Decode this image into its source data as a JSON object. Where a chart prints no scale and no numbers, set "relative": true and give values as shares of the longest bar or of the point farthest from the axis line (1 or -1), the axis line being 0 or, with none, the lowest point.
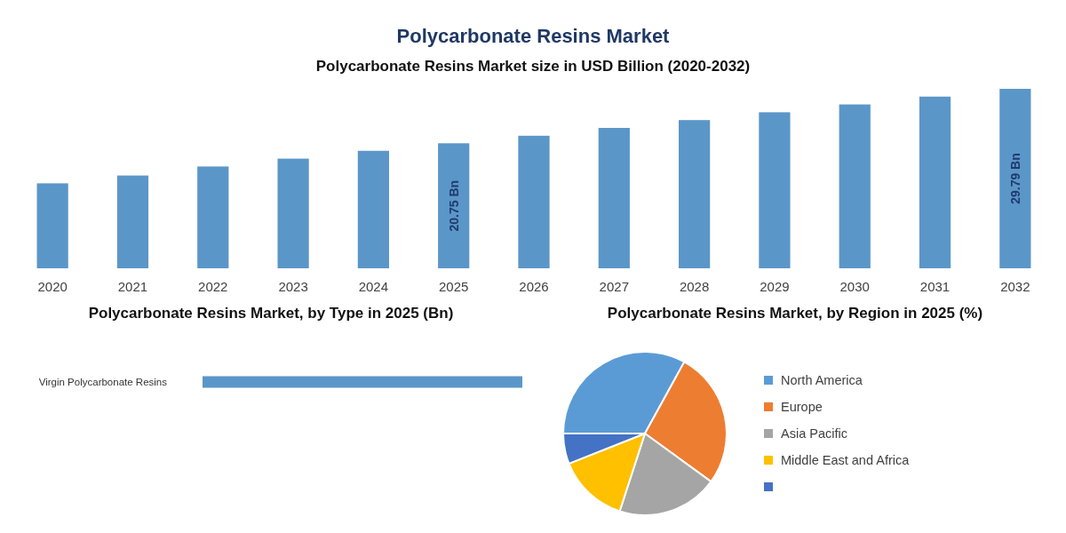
{
  "chart_data": [
    {
      "type": "bar",
      "title": "Polycarbonate Resins Market",
      "subtitle": "Polycarbonate Resins Market size in USD Billion (2020-2032)",
      "categories": [
        "2020",
        "2021",
        "2022",
        "2023",
        "2024",
        "2025",
        "2026",
        "2027",
        "2028",
        "2029",
        "2030",
        "2031",
        "2032"
      ],
      "values": [
        14.1,
        15.4,
        16.9,
        18.2,
        19.5,
        20.75,
        22.0,
        23.3,
        24.6,
        25.9,
        27.2,
        28.5,
        29.79
      ],
      "value_labels": [
        null,
        null,
        null,
        null,
        null,
        "20.75 Bn",
        null,
        null,
        null,
        null,
        null,
        null,
        "29.79 Bn"
      ],
      "color": "#5b96c8"
    },
    {
      "type": "bar",
      "orientation": "horizontal",
      "relative": true,
      "title": "Polycarbonate Resins Market, by Type in 2025 (Bn)",
      "categories": [
        "Virgin Polycarbonate Resins"
      ],
      "values": [
        1
      ],
      "color": "#5b96c8"
    },
    {
      "type": "pie",
      "title": "Polycarbonate Resins Market, by Region in 2025 (%)",
      "categories": [
        "North America",
        "Europe",
        "Asia Pacific",
        "Middle East and Africa",
        null
      ],
      "values": [
        33,
        27,
        20,
        14,
        6
      ],
      "colors": [
        "#5b9bd5",
        "#ed7d31",
        "#a5a5a5",
        "#ffc000",
        "#4472c4"
      ],
      "legend": "right"
    }
  ]
}
